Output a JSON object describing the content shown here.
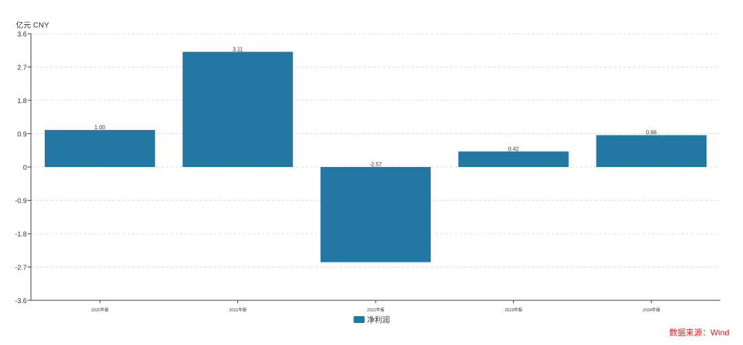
{
  "chart_data": {
    "type": "bar",
    "unit_label": "亿元  CNY",
    "categories": [
      "2020年报",
      "2021年报",
      "2022年报",
      "2023年报",
      "2024年报"
    ],
    "series": [
      {
        "name": "净利润",
        "values": [
          1.0,
          3.11,
          -2.57,
          0.42,
          0.86
        ],
        "labels": [
          "1.00",
          "3.11",
          "-2.57",
          "0.42",
          "0.86"
        ]
      }
    ],
    "yticks": [
      "3.6",
      "2.7",
      "1.8",
      "0.9",
      "0",
      "-0.9",
      "-1.8",
      "-2.7",
      "-3.6"
    ],
    "ytick_values": [
      3.6,
      2.7,
      1.8,
      0.9,
      0,
      -0.9,
      -1.8,
      -2.7,
      -3.6
    ],
    "ylim": [
      -3.6,
      3.6
    ],
    "grid": true,
    "legend_position": "bottom-center",
    "bar_color": "#2277a3",
    "source": "数据来源：Wind"
  }
}
